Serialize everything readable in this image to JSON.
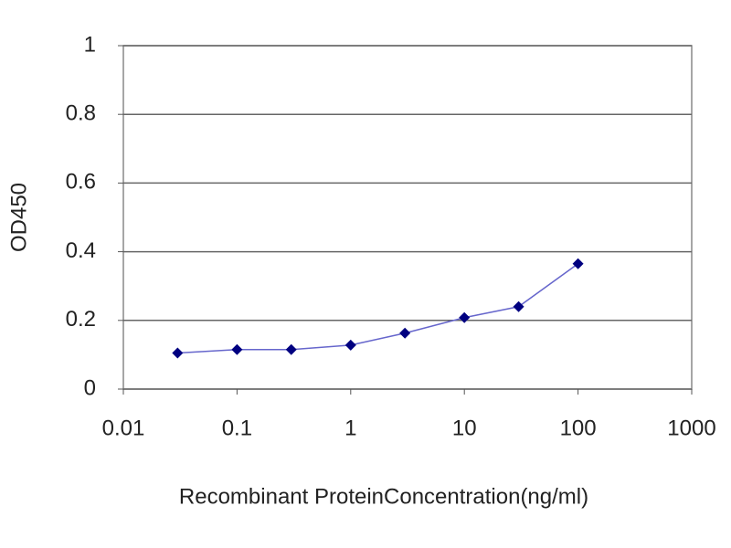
{
  "chart_data": {
    "type": "line",
    "xlabel": "Recombinant ProteinConcentration(ng/ml)",
    "ylabel": "OD450",
    "x": [
      0.03,
      0.1,
      0.3,
      1,
      3,
      10,
      30,
      100
    ],
    "series": [
      {
        "color": "#6666cc",
        "marker_color": "#000080",
        "values": [
          0.105,
          0.115,
          0.115,
          0.128,
          0.163,
          0.208,
          0.24,
          0.365
        ]
      }
    ],
    "xscale": "log",
    "xlim": [
      0.01,
      1000
    ],
    "xticks": [
      0.01,
      0.1,
      1,
      10,
      100,
      1000
    ],
    "ylim": [
      0,
      1
    ],
    "yticks": [
      0,
      0.2,
      0.4,
      0.6,
      0.8,
      1
    ],
    "grid": true
  }
}
